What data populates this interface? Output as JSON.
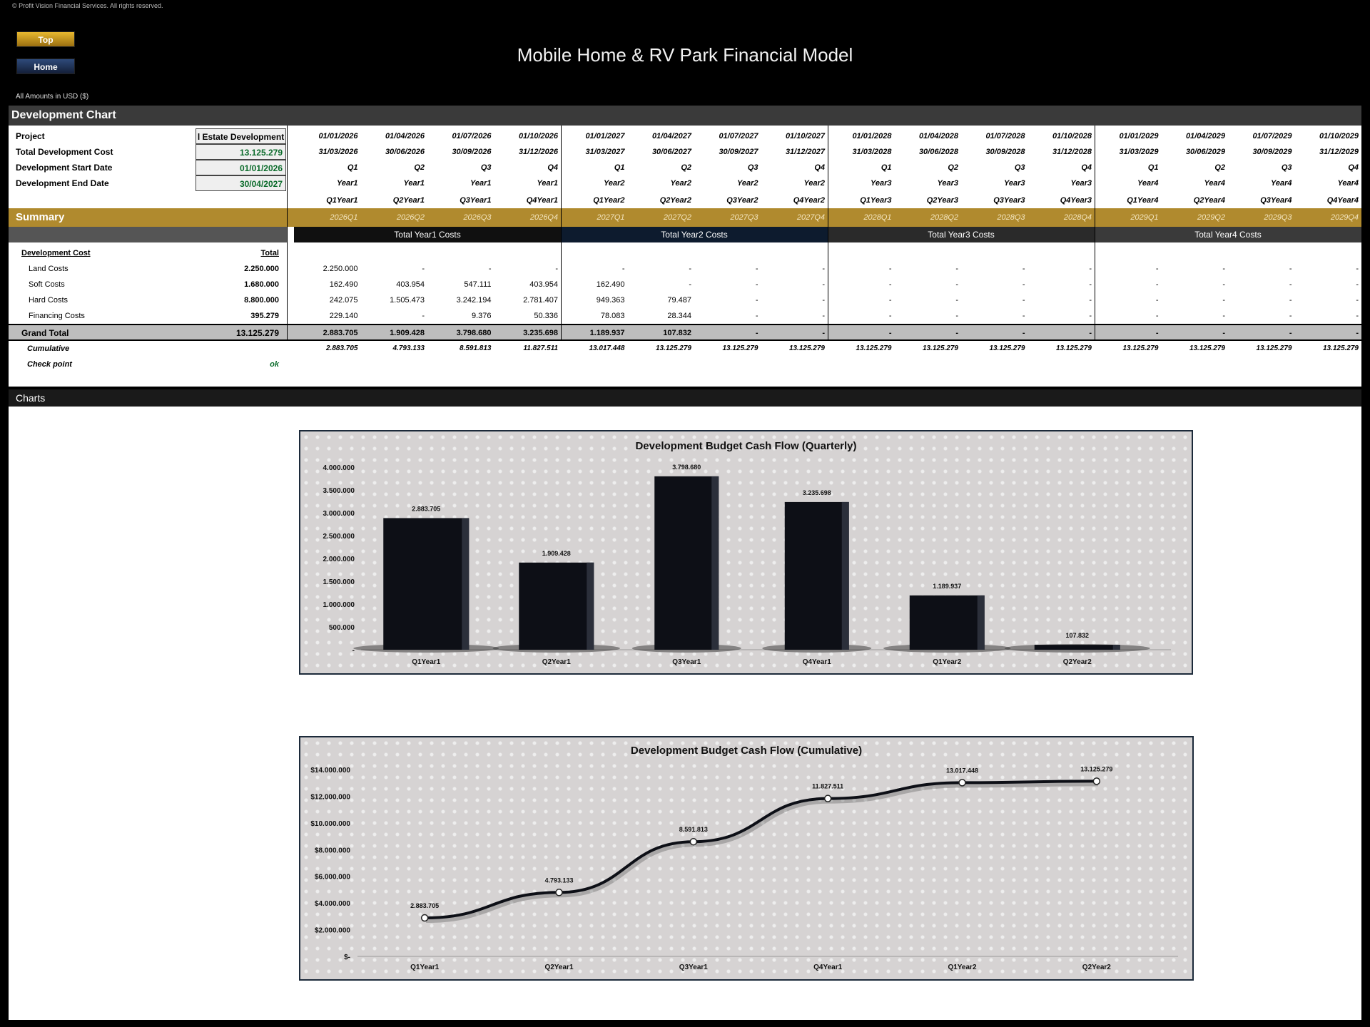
{
  "copyright": "© Profit Vision Financial Services. All rights reserved.",
  "nav": {
    "top_label": "Top",
    "home_label": "Home"
  },
  "title": "Mobile Home & RV Park Financial Model",
  "amounts_note": "All Amounts in  USD ($)",
  "section_title": "Development Chart",
  "charts_section_title": "Charts",
  "info": {
    "project_label": "Project",
    "project_value": "l Estate Development",
    "tdc_label": "Total Development Cost",
    "tdc_value": "13.125.279",
    "start_label": "Development Start Date",
    "start_value": "01/01/2026",
    "end_label": "Development End Date",
    "end_value": "30/04/2027"
  },
  "periods": [
    {
      "start": "01/01/2026",
      "end": "31/03/2026",
      "q": "Q1",
      "year": "Year1",
      "qy": "Q1Year1",
      "code": "2026Q1"
    },
    {
      "start": "01/04/2026",
      "end": "30/06/2026",
      "q": "Q2",
      "year": "Year1",
      "qy": "Q2Year1",
      "code": "2026Q2"
    },
    {
      "start": "01/07/2026",
      "end": "30/09/2026",
      "q": "Q3",
      "year": "Year1",
      "qy": "Q3Year1",
      "code": "2026Q3"
    },
    {
      "start": "01/10/2026",
      "end": "31/12/2026",
      "q": "Q4",
      "year": "Year1",
      "qy": "Q4Year1",
      "code": "2026Q4"
    },
    {
      "start": "01/01/2027",
      "end": "31/03/2027",
      "q": "Q1",
      "year": "Year2",
      "qy": "Q1Year2",
      "code": "2027Q1"
    },
    {
      "start": "01/04/2027",
      "end": "30/06/2027",
      "q": "Q2",
      "year": "Year2",
      "qy": "Q2Year2",
      "code": "2027Q2"
    },
    {
      "start": "01/07/2027",
      "end": "30/09/2027",
      "q": "Q3",
      "year": "Year2",
      "qy": "Q3Year2",
      "code": "2027Q3"
    },
    {
      "start": "01/10/2027",
      "end": "31/12/2027",
      "q": "Q4",
      "year": "Year2",
      "qy": "Q4Year2",
      "code": "2027Q4"
    },
    {
      "start": "01/01/2028",
      "end": "31/03/2028",
      "q": "Q1",
      "year": "Year3",
      "qy": "Q1Year3",
      "code": "2028Q1"
    },
    {
      "start": "01/04/2028",
      "end": "30/06/2028",
      "q": "Q2",
      "year": "Year3",
      "qy": "Q2Year3",
      "code": "2028Q2"
    },
    {
      "start": "01/07/2028",
      "end": "30/09/2028",
      "q": "Q3",
      "year": "Year3",
      "qy": "Q3Year3",
      "code": "2028Q3"
    },
    {
      "start": "01/10/2028",
      "end": "31/12/2028",
      "q": "Q4",
      "year": "Year3",
      "qy": "Q4Year3",
      "code": "2028Q4"
    },
    {
      "start": "01/01/2029",
      "end": "31/03/2029",
      "q": "Q1",
      "year": "Year4",
      "qy": "Q1Year4",
      "code": "2029Q1"
    },
    {
      "start": "01/04/2029",
      "end": "30/06/2029",
      "q": "Q2",
      "year": "Year4",
      "qy": "Q2Year4",
      "code": "2029Q2"
    },
    {
      "start": "01/07/2029",
      "end": "30/09/2029",
      "q": "Q3",
      "year": "Year4",
      "qy": "Q3Year4",
      "code": "2029Q3"
    },
    {
      "start": "01/10/2029",
      "end": "31/12/2029",
      "q": "Q4",
      "year": "Year4",
      "qy": "Q4Year4",
      "code": "2029Q4"
    }
  ],
  "summary_label": "Summary",
  "year_headers": [
    "Total Year1 Costs",
    "Total Year2 Costs",
    "Total Year3 Costs",
    "Total Year4 Costs"
  ],
  "year_header_colors": [
    "#101010",
    "#0d1b2e",
    "#2a2a2a",
    "#3a3a3a"
  ],
  "cost_header": {
    "label": "Development Cost",
    "total": "Total"
  },
  "cost_rows": [
    {
      "label": "Land Costs",
      "total": "2.250.000",
      "values": [
        "2.250.000",
        "-",
        "-",
        "-",
        "-",
        "-",
        "-",
        "-",
        "-",
        "-",
        "-",
        "-",
        "-",
        "-",
        "-",
        "-"
      ]
    },
    {
      "label": "Soft Costs",
      "total": "1.680.000",
      "values": [
        "162.490",
        "403.954",
        "547.111",
        "403.954",
        "162.490",
        "-",
        "-",
        "-",
        "-",
        "-",
        "-",
        "-",
        "-",
        "-",
        "-",
        "-"
      ]
    },
    {
      "label": "Hard Costs",
      "total": "8.800.000",
      "values": [
        "242.075",
        "1.505.473",
        "3.242.194",
        "2.781.407",
        "949.363",
        "79.487",
        "-",
        "-",
        "-",
        "-",
        "-",
        "-",
        "-",
        "-",
        "-",
        "-"
      ]
    },
    {
      "label": "Financing Costs",
      "total": "395.279",
      "values": [
        "229.140",
        "-",
        "9.376",
        "50.336",
        "78.083",
        "28.344",
        "-",
        "-",
        "-",
        "-",
        "-",
        "-",
        "-",
        "-",
        "-",
        "-"
      ]
    }
  ],
  "grand_total": {
    "label": "Grand Total",
    "total": "13.125.279",
    "values": [
      "2.883.705",
      "1.909.428",
      "3.798.680",
      "3.235.698",
      "1.189.937",
      "107.832",
      "-",
      "-",
      "-",
      "-",
      "-",
      "-",
      "-",
      "-",
      "-",
      "-"
    ]
  },
  "cumulative": {
    "label": "Cumulative",
    "values": [
      "2.883.705",
      "4.793.133",
      "8.591.813",
      "11.827.511",
      "13.017.448",
      "13.125.279",
      "13.125.279",
      "13.125.279",
      "13.125.279",
      "13.125.279",
      "13.125.279",
      "13.125.279",
      "13.125.279",
      "13.125.279",
      "13.125.279",
      "13.125.279"
    ]
  },
  "check_point": {
    "label": "Check point",
    "value": "ok"
  },
  "chart_data": [
    {
      "type": "bar",
      "title": "Development Budget Cash Flow (Quarterly)",
      "categories": [
        "Q1Year1",
        "Q2Year1",
        "Q3Year1",
        "Q4Year1",
        "Q1Year2",
        "Q2Year2"
      ],
      "values": [
        2883705,
        1909428,
        3798680,
        3235698,
        1189937,
        107832
      ],
      "value_labels": [
        "2.883.705",
        "1.909.428",
        "3.798.680",
        "3.235.698",
        "1.189.937",
        "107.832"
      ],
      "yticks": [
        "-",
        "500.000",
        "1.000.000",
        "1.500.000",
        "2.000.000",
        "2.500.000",
        "3.000.000",
        "3.500.000",
        "4.000.000"
      ],
      "ylim": [
        0,
        4000000
      ],
      "bar_color": "#0d0f16"
    },
    {
      "type": "line",
      "title": "Development Budget Cash Flow (Cumulative)",
      "categories": [
        "Q1Year1",
        "Q2Year1",
        "Q3Year1",
        "Q4Year1",
        "Q1Year2",
        "Q2Year2"
      ],
      "values": [
        2883705,
        4793133,
        8591813,
        11827511,
        13017448,
        13125279
      ],
      "value_labels": [
        "2.883.705",
        "4.793.133",
        "8.591.813",
        "11.827.511",
        "13.017.448",
        "13.125.279"
      ],
      "yticks": [
        "$-",
        "$2.000.000",
        "$4.000.000",
        "$6.000.000",
        "$8.000.000",
        "$10.000.000",
        "$12.000.000",
        "$14.000.000"
      ],
      "ylim": [
        0,
        14000000
      ],
      "line_color": "#0d0f16"
    }
  ]
}
